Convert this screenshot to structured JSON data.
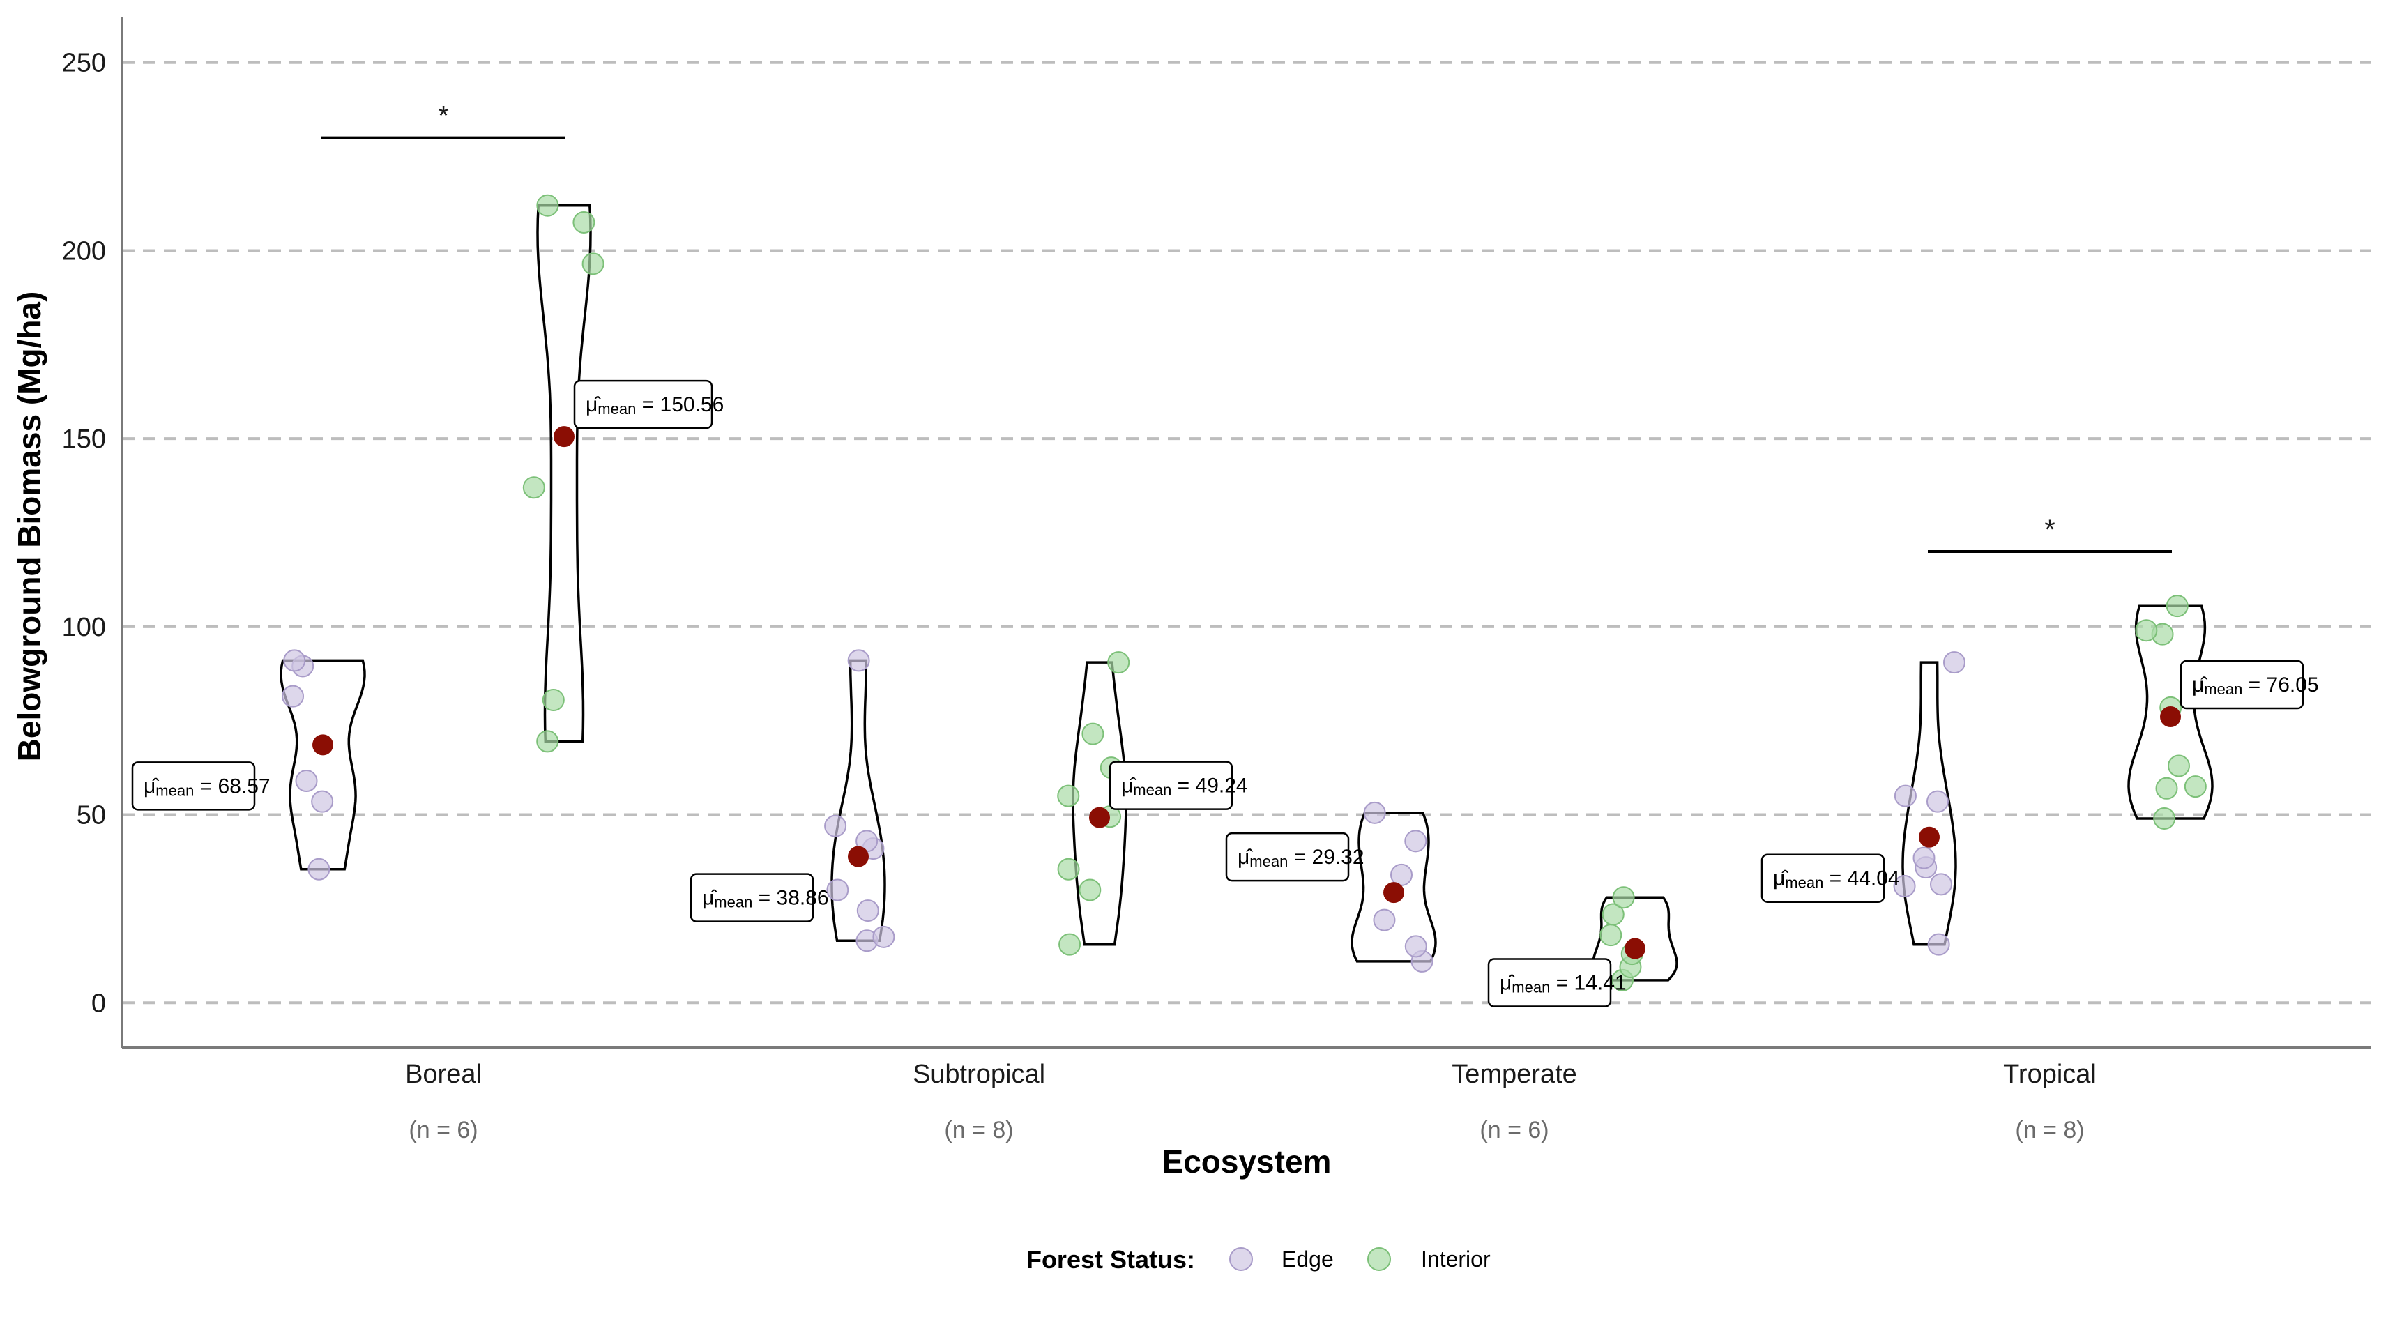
{
  "chart_data": {
    "type": "scatter",
    "subtype": "grouped violin with jittered points",
    "xlabel": "Ecosystem",
    "ylabel": "Belowground Biomass (Mg/ha)",
    "ylim": [
      -12,
      262
    ],
    "yticks": [
      0,
      50,
      100,
      150,
      200,
      250
    ],
    "grid": "horizontal dashed",
    "legend": {
      "title": "Forest Status:",
      "placement": "bottom",
      "entries": [
        {
          "label": "Edge",
          "color": "#cfc6e3"
        },
        {
          "label": "Interior",
          "color": "#a9dca6"
        }
      ]
    },
    "colors": {
      "edge": "#cfc6e3",
      "interior": "#a9dca6",
      "mean": "#8b0e04",
      "violin": "#000000",
      "grid": "#bdbdbd"
    },
    "mean_prefix": "μ̂",
    "mean_subscript": "mean",
    "categories": [
      {
        "name": "Boreal",
        "n_label": "(n = 6)",
        "significance": "*",
        "sig_y": 230,
        "groups": [
          {
            "status": "Edge",
            "mean": 68.57,
            "mean_label": "68.57",
            "min": 35.5,
            "max": 91,
            "points": [
              35.5,
              53.5,
              59,
              81.5,
              89.5,
              91
            ]
          },
          {
            "status": "Interior",
            "mean": 150.56,
            "mean_label": "150.56",
            "min": 69.5,
            "max": 212,
            "points": [
              69.5,
              80.5,
              137,
              196.5,
              207.5,
              212
            ]
          }
        ]
      },
      {
        "name": "Subtropical",
        "n_label": "(n = 8)",
        "significance": "",
        "groups": [
          {
            "status": "Edge",
            "mean": 38.86,
            "mean_label": "38.86",
            "min": 16.5,
            "max": 91,
            "points": [
              16.5,
              17.5,
              24.5,
              30,
              41,
              43,
              47,
              91
            ]
          },
          {
            "status": "Interior",
            "mean": 49.24,
            "mean_label": "49.24",
            "min": 15.5,
            "max": 90.5,
            "points": [
              15.5,
              30,
              35.5,
              49.5,
              55,
              62.5,
              71.5,
              90.5
            ]
          }
        ]
      },
      {
        "name": "Temperate",
        "n_label": "(n = 6)",
        "significance": "",
        "groups": [
          {
            "status": "Edge",
            "mean": 29.32,
            "mean_label": "29.32",
            "min": 11,
            "max": 50.5,
            "points": [
              11,
              15,
              22,
              34,
              43,
              50.5
            ]
          },
          {
            "status": "Interior",
            "mean": 14.41,
            "mean_label": "14.41",
            "min": 6,
            "max": 28,
            "points": [
              6,
              9.5,
              13,
              18,
              23.5,
              28
            ]
          }
        ]
      },
      {
        "name": "Tropical",
        "n_label": "(n = 8)",
        "significance": "*",
        "sig_y": 120,
        "groups": [
          {
            "status": "Edge",
            "mean": 44.04,
            "mean_label": "44.04",
            "min": 15.5,
            "max": 90.5,
            "points": [
              15.5,
              31,
              31.5,
              36,
              38.5,
              53.5,
              55,
              90.5
            ]
          },
          {
            "status": "Interior",
            "mean": 76.05,
            "mean_label": "76.05",
            "min": 49,
            "max": 105.5,
            "points": [
              49,
              57,
              57.5,
              63,
              78.5,
              98,
              99,
              105.5
            ]
          }
        ]
      }
    ]
  }
}
